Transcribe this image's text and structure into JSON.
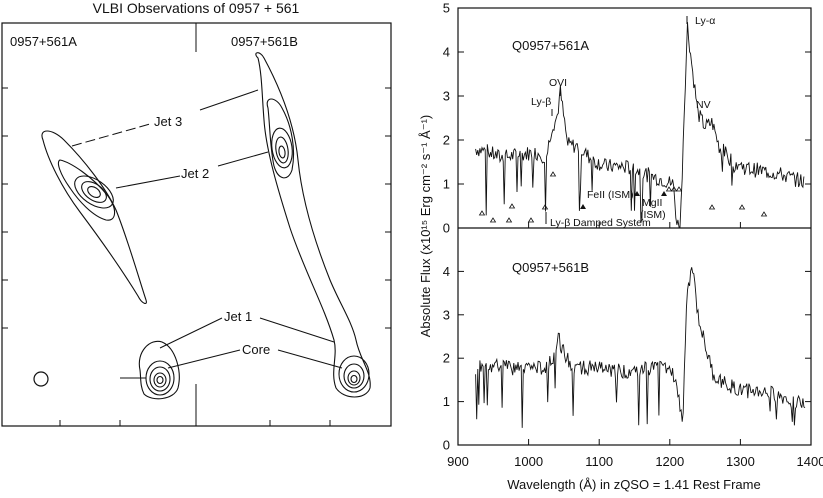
{
  "vlbi": {
    "title": "VLBI Observations of 0957 + 561",
    "image_a": "0957+561A",
    "image_b": "0957+561B",
    "jet3": "Jet 3",
    "jet2": "Jet 2",
    "jet1": "Jet 1",
    "core": "Core"
  },
  "chart_data": {
    "type": "line",
    "xlabel": "Wavelength (Å) in zQSO = 1.41 Rest Frame",
    "ylabel": "Absolute Flux (x10¹⁵ Erg cm⁻² s⁻¹ Å⁻¹)",
    "xlim": [
      900,
      1400
    ],
    "xticks": [
      900,
      1000,
      1100,
      1200,
      1300,
      1400
    ],
    "panels": [
      {
        "name": "Q0957+561A",
        "ylim": [
          0,
          5
        ],
        "yticks": [
          0,
          1,
          2,
          3,
          4,
          5
        ],
        "x": [
          925,
          940,
          960,
          980,
          1000,
          1015,
          1025,
          1033,
          1040,
          1045,
          1055,
          1070,
          1090,
          1110,
          1130,
          1150,
          1170,
          1190,
          1205,
          1210,
          1215,
          1220,
          1225,
          1232,
          1240,
          1250,
          1260,
          1270,
          1290,
          1310,
          1330,
          1350,
          1370,
          1390
        ],
        "values": [
          1.8,
          1.75,
          1.6,
          1.65,
          1.7,
          1.7,
          1.6,
          2.3,
          2.5,
          3.1,
          1.9,
          1.85,
          1.55,
          1.4,
          1.4,
          1.35,
          1.2,
          1.1,
          1.0,
          0.1,
          0.05,
          2.5,
          4.6,
          3.6,
          2.6,
          2.3,
          2.4,
          1.85,
          1.5,
          1.35,
          1.3,
          1.25,
          1.15,
          1.05
        ],
        "annotations": [
          "Ly-α",
          "OVI",
          "Ly-β",
          "NV",
          "FeII (ISM)",
          "MgII",
          "(ISM)",
          "Ly-β Damped System"
        ]
      },
      {
        "name": "Q0957+561B",
        "ylim": [
          0,
          5
        ],
        "yticks": [
          0,
          1,
          2,
          3,
          4
        ],
        "x": [
          925,
          940,
          960,
          980,
          1000,
          1020,
          1035,
          1042,
          1048,
          1060,
          1080,
          1100,
          1120,
          1140,
          1160,
          1180,
          1195,
          1205,
          1212,
          1218,
          1224,
          1232,
          1240,
          1250,
          1262,
          1280,
          1300,
          1320,
          1340,
          1360,
          1380,
          1392
        ],
        "values": [
          1.8,
          1.85,
          1.8,
          1.75,
          1.8,
          1.75,
          2.05,
          2.5,
          2.2,
          1.8,
          1.8,
          1.75,
          1.7,
          1.7,
          1.75,
          1.8,
          1.75,
          1.6,
          1.2,
          0.4,
          3.3,
          4.2,
          3.0,
          2.3,
          1.6,
          1.4,
          1.25,
          1.25,
          1.2,
          1.1,
          1.0,
          0.9
        ]
      }
    ]
  }
}
